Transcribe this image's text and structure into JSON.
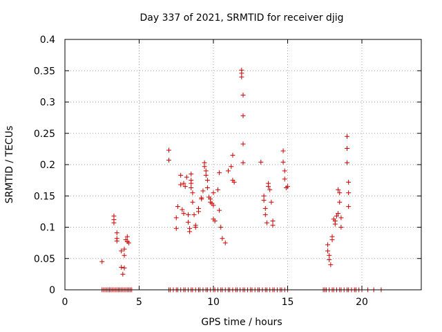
{
  "chart_data": {
    "type": "scatter",
    "title": "Day 337 of 2021, SRMTID for receiver djig",
    "xlabel": "GPS time / hours",
    "ylabel": "SRMTID / TECUs",
    "xlim": [
      0,
      24
    ],
    "ylim": [
      0,
      0.4
    ],
    "grid": true,
    "marker": "plus",
    "color": "#cc0000",
    "xticks": [
      0,
      5,
      10,
      15,
      20
    ],
    "xtick_labels": [
      "0",
      "5",
      "10",
      "15",
      "20"
    ],
    "yticks": [
      0,
      0.05,
      0.1,
      0.15,
      0.2,
      0.25,
      0.3,
      0.35,
      0.4
    ],
    "ytick_labels": [
      "0",
      "0.05",
      "0.1",
      "0.15",
      "0.2",
      "0.25",
      "0.3",
      "0.35",
      "0.4"
    ],
    "x": [
      2.5,
      3.3,
      3.3,
      3.3,
      3.5,
      3.5,
      3.5,
      3.8,
      3.8,
      3.9,
      4.0,
      4.0,
      4.0,
      4.1,
      4.2,
      4.2,
      4.3,
      7.0,
      7.0,
      7.5,
      7.5,
      7.6,
      7.8,
      7.8,
      7.9,
      8.0,
      8.0,
      8.1,
      8.2,
      8.3,
      8.3,
      8.4,
      8.4,
      8.5,
      8.5,
      8.5,
      8.5,
      8.6,
      8.6,
      8.7,
      8.8,
      8.8,
      9.0,
      9.0,
      9.2,
      9.2,
      9.3,
      9.4,
      9.4,
      9.5,
      9.5,
      9.6,
      9.6,
      9.7,
      9.8,
      9.8,
      9.9,
      10.0,
      10.0,
      10.0,
      10.1,
      10.3,
      10.4,
      10.4,
      10.5,
      10.6,
      10.8,
      11.0,
      11.2,
      11.3,
      11.3,
      11.4,
      11.9,
      11.9,
      11.9,
      12.0,
      12.0,
      12.0,
      12.0,
      13.2,
      13.4,
      13.4,
      13.5,
      13.5,
      13.6,
      13.7,
      13.7,
      13.8,
      13.9,
      14.0,
      14.0,
      14.7,
      14.7,
      14.8,
      14.8,
      14.9,
      15.0,
      17.7,
      17.7,
      17.8,
      17.8,
      17.9,
      18.0,
      18.0,
      18.1,
      18.2,
      18.2,
      18.3,
      18.4,
      18.4,
      18.5,
      18.5,
      18.6,
      18.6,
      19.0,
      19.0,
      19.0,
      19.1,
      19.1,
      19.1
    ],
    "y": [
      0.045,
      0.118,
      0.112,
      0.107,
      0.091,
      0.082,
      0.078,
      0.062,
      0.036,
      0.025,
      0.035,
      0.065,
      0.055,
      0.08,
      0.085,
      0.077,
      0.075,
      0.223,
      0.207,
      0.098,
      0.115,
      0.133,
      0.183,
      0.168,
      0.128,
      0.17,
      0.122,
      0.165,
      0.18,
      0.12,
      0.108,
      0.093,
      0.098,
      0.185,
      0.175,
      0.17,
      0.163,
      0.155,
      0.14,
      0.12,
      0.103,
      0.1,
      0.13,
      0.125,
      0.147,
      0.145,
      0.158,
      0.203,
      0.197,
      0.19,
      0.183,
      0.175,
      0.163,
      0.148,
      0.145,
      0.14,
      0.138,
      0.155,
      0.135,
      0.113,
      0.11,
      0.16,
      0.187,
      0.127,
      0.1,
      0.082,
      0.075,
      0.19,
      0.197,
      0.215,
      0.175,
      0.172,
      0.351,
      0.346,
      0.34,
      0.311,
      0.278,
      0.233,
      0.203,
      0.204,
      0.15,
      0.143,
      0.13,
      0.12,
      0.107,
      0.17,
      0.165,
      0.16,
      0.14,
      0.11,
      0.103,
      0.222,
      0.204,
      0.19,
      0.177,
      0.163,
      0.165,
      0.072,
      0.062,
      0.055,
      0.048,
      0.04,
      0.085,
      0.08,
      0.113,
      0.11,
      0.105,
      0.118,
      0.122,
      0.16,
      0.155,
      0.14,
      0.115,
      0.1,
      0.245,
      0.226,
      0.203,
      0.172,
      0.155,
      0.133
    ],
    "zero_x": [
      2.5,
      2.6,
      2.7,
      2.8,
      2.9,
      3.0,
      3.1,
      3.2,
      3.3,
      3.4,
      3.5,
      3.6,
      3.7,
      3.8,
      3.9,
      4.0,
      4.1,
      4.2,
      4.3,
      4.4,
      4.5,
      7.0,
      7.1,
      7.3,
      7.5,
      7.6,
      7.8,
      8.0,
      8.1,
      8.3,
      8.5,
      8.6,
      8.8,
      9.0,
      9.1,
      9.3,
      9.5,
      9.6,
      9.8,
      10.0,
      10.1,
      10.3,
      10.5,
      10.6,
      10.8,
      11.0,
      11.1,
      11.3,
      11.5,
      11.6,
      11.8,
      12.0,
      12.1,
      12.3,
      12.5,
      12.6,
      12.8,
      13.0,
      13.1,
      13.3,
      13.5,
      13.6,
      13.8,
      14.0,
      14.1,
      14.3,
      14.5,
      14.6,
      14.8,
      15.0,
      17.4,
      17.5,
      17.6,
      17.8,
      18.0,
      18.1,
      18.3,
      18.5,
      18.6,
      18.8,
      19.0,
      19.1,
      19.3,
      19.5,
      19.6,
      19.8,
      20.0,
      20.4,
      20.8,
      21.3
    ]
  }
}
